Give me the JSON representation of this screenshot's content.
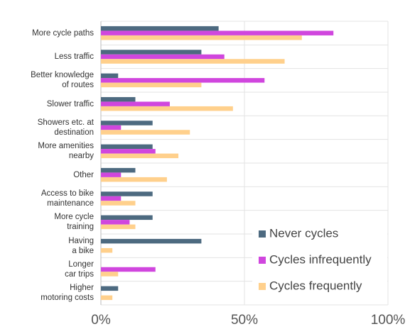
{
  "chart_data": {
    "type": "barh",
    "categories": [
      "More cycle paths",
      "Less traffic",
      "Better knowledge\nof routes",
      "Slower traffic",
      "Showers etc. at\ndestination",
      "More amenities\nnearby",
      "Other",
      "Access to bike\nmaintenance",
      "More cycle\ntraining",
      "Having\na bike",
      "Longer\ncar trips",
      "Higher\nmotoring costs"
    ],
    "series": [
      {
        "name": "Never cycles",
        "color": "#4d6a80",
        "values": [
          41,
          35,
          6,
          12,
          18,
          18,
          12,
          18,
          18,
          35,
          0,
          6
        ]
      },
      {
        "name": "Cycles infrequently",
        "color": "#d046de",
        "values": [
          81,
          43,
          57,
          24,
          7,
          19,
          7,
          7,
          10,
          0,
          19,
          0
        ]
      },
      {
        "name": "Cycles frequently",
        "color": "#ffd08c",
        "values": [
          70,
          64,
          35,
          46,
          31,
          27,
          23,
          12,
          12,
          4,
          6,
          4
        ]
      }
    ],
    "xlim": [
      0,
      100
    ],
    "xticks": [
      {
        "value": 0,
        "label": "0%"
      },
      {
        "value": 50,
        "label": "50%"
      },
      {
        "value": 100,
        "label": "100%"
      }
    ],
    "grid": true,
    "legend": "lower right"
  }
}
